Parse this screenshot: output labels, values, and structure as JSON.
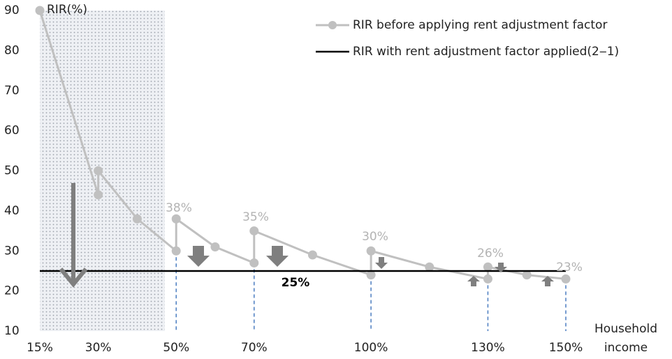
{
  "chart_data": {
    "type": "line",
    "y_label": "RIR(%)",
    "x_label": [
      "Household",
      "income"
    ],
    "xlim": [
      15,
      150
    ],
    "ylim": [
      10,
      90
    ],
    "yticks": [
      10,
      20,
      30,
      40,
      50,
      60,
      70,
      80,
      90
    ],
    "xticks": [
      {
        "value": 15,
        "label": "15%"
      },
      {
        "value": 30,
        "label": "30%"
      },
      {
        "value": 50,
        "label": "50%"
      },
      {
        "value": 70,
        "label": "70%"
      },
      {
        "value": 100,
        "label": "100%"
      },
      {
        "value": 130,
        "label": "130%"
      },
      {
        "value": 150,
        "label": "150%"
      }
    ],
    "series": [
      {
        "name": "RIR before applying rent adjustment factor",
        "color": "#c0c0c0",
        "markers": true,
        "x": [
          15,
          30,
          30,
          40,
          50,
          50,
          60,
          70,
          70,
          85,
          100,
          100,
          115,
          130,
          130,
          140,
          150
        ],
        "values": [
          90,
          44,
          50,
          38,
          30,
          38,
          31,
          27,
          35,
          29,
          24,
          30,
          26,
          23,
          26,
          24,
          23
        ]
      },
      {
        "name": "RIR with rent adjustment factor applied(2‒1)",
        "color": "#000000",
        "markers": false,
        "x": [
          15,
          150
        ],
        "values": [
          25,
          25
        ]
      }
    ],
    "annotations": [
      "38%",
      "35%",
      "30%",
      "26%",
      "23%",
      "25%"
    ]
  }
}
